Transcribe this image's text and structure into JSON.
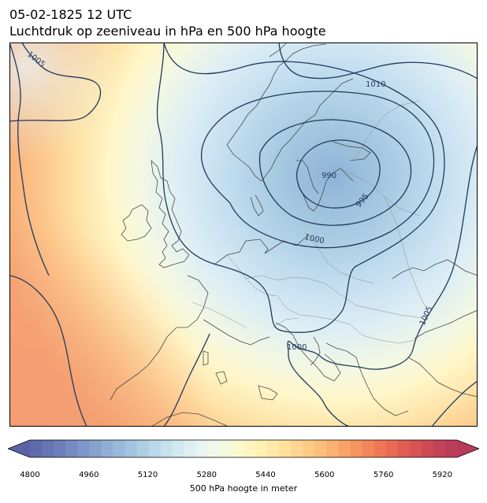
{
  "header": {
    "datetime": "05-02-1825 12 UTC",
    "subtitle": "Luchtdruk op zeeniveau in hPa en 500 hPa hoogte"
  },
  "map": {
    "region": "Europe",
    "isobar_labels": [
      "1005",
      "1010",
      "990",
      "995",
      "1000",
      "1005",
      "1000"
    ],
    "low_pressure_center_hpa": 990
  },
  "colorbar": {
    "label": "500 hPa hoogte in meter",
    "ticks": [
      "4800",
      "4960",
      "5120",
      "5280",
      "5440",
      "5600",
      "5760",
      "5920"
    ],
    "range": [
      4800,
      5960
    ],
    "colors": [
      "#5b63a8",
      "#6a7bb8",
      "#7b93c6",
      "#8fabd2",
      "#a3c3de",
      "#bad9ea",
      "#d5eaf2",
      "#ebf6f4",
      "#f7fbd8",
      "#fff3b8",
      "#fee3a0",
      "#fdcd88",
      "#fbb271",
      "#f7935f",
      "#ee7555",
      "#de5a53",
      "#c94556",
      "#b83a5a"
    ]
  }
}
